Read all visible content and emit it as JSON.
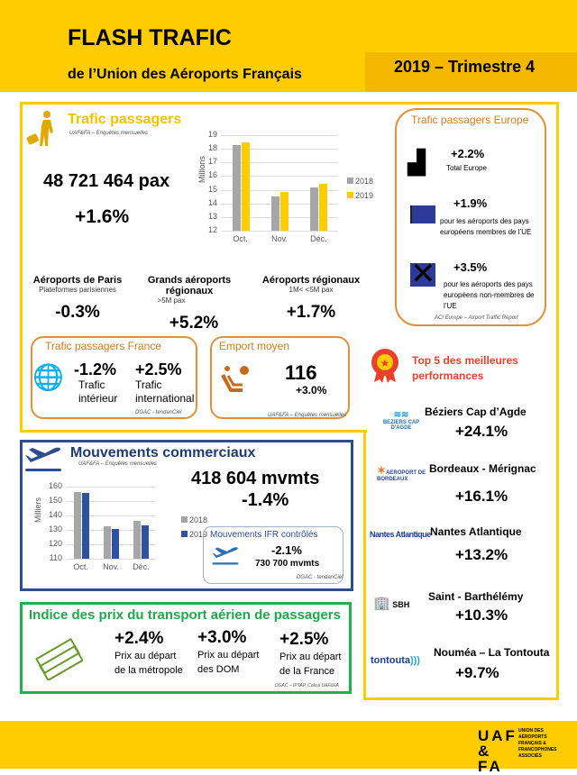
{
  "header": {
    "title": "FLASH TRAFIC",
    "subtitle": "de l’Union des Aéroports Français",
    "period": "2019 – Trimestre 4"
  },
  "passengers": {
    "title": "Trafic passagers",
    "source": "UAF&FA – Enquêtes mensuelles",
    "total": "48 721 464 pax",
    "change": "+1.6%",
    "segments": [
      {
        "name": "Aéroports de Paris",
        "sub": "Plateformes parisiennes",
        "value": "-0.3%"
      },
      {
        "name": "Grands aéroports régionaux",
        "sub": ">5M pax",
        "value": "+5.2%"
      },
      {
        "name": "Aéroports régionaux",
        "sub": "1M< <5M pax",
        "value": "+1.7%"
      }
    ]
  },
  "france": {
    "title": "Trafic passagers France",
    "dom_value": "-1.2%",
    "dom_l1": "Trafic",
    "dom_l2": "intérieur",
    "intl_value": "+2.5%",
    "intl_l1": "Trafic",
    "intl_l2": "international",
    "source": "DGAC - tendanCiel"
  },
  "emport": {
    "title": "Emport moyen",
    "value": "116",
    "change": "+3.0%",
    "source": "UAF&FA – Enquêtes mensuelles"
  },
  "europe": {
    "title": "Trafic passagers Europe",
    "total_value": "+2.2%",
    "total_label": "Total Europe",
    "ue_value": "+1.9%",
    "ue_label": "pour les aéroports des pays européens membres de l’UE",
    "nonue_value": "+3.5%",
    "nonue_label": "pour les aéroports des pays européens non-membres de l’UE",
    "source": "ACI Europe – Airport Traffic Report"
  },
  "movements": {
    "title": "Mouvements commerciaux",
    "source": "UAF&FA – Enquêtes mensuelles",
    "total": "418 604 mvmts",
    "change": "-1.4%",
    "ifr": {
      "title": "Mouvements IFR contrôlés",
      "change": "-2.1%",
      "total": "730 700 mvmts",
      "source": "DGAC - tendanCiel"
    }
  },
  "prices": {
    "title": "Indice des prix du transport aérien de passagers",
    "source": "DGAC – IPTAP, Calcul UAF&FA",
    "items": [
      {
        "value": "+2.4%",
        "l1": "Prix au départ",
        "l2": "de la métropole"
      },
      {
        "value": "+3.0%",
        "l1": "Prix au départ",
        "l2": "des DOM"
      },
      {
        "value": "+2.5%",
        "l1": "Prix au départ",
        "l2": "de la France"
      }
    ]
  },
  "top5": {
    "title1": "Top 5 des meilleures",
    "title2": "performances",
    "items": [
      {
        "name": "Béziers Cap d’Agde",
        "value": "+24.1%",
        "logo": "BEZIERS CAP D'AGDE"
      },
      {
        "name": "Bordeaux - Mérignac",
        "value": "+16.1%",
        "logo": "AEROPORT DE BORDEAUX"
      },
      {
        "name": "Nantes Atlantique",
        "value": "+13.2%",
        "logo": "Nantes Atlantique"
      },
      {
        "name": "Saint - Barthélémy",
        "value": "+10.3%",
        "logo": "SBH"
      },
      {
        "name": "Nouméa – La Tontouta",
        "value": "+9.7%",
        "logo": "tontouta"
      }
    ]
  },
  "footer": {
    "logo": "UAF & FA",
    "logo_text": "UNION DES AÉROPORTS FRANÇAIS & FRANCOPHONES ASSOCIÉS"
  },
  "chart_data": [
    {
      "type": "bar",
      "title": "Trafic passagers",
      "ylabel": "Millions",
      "categories": [
        "Oct.",
        "Nov.",
        "Déc."
      ],
      "ylim": [
        12,
        19
      ],
      "yticks": [
        12,
        13,
        14,
        15,
        16,
        17,
        18,
        19
      ],
      "series": [
        {
          "name": "2018",
          "color": "#a6a6a6",
          "values": [
            18.25,
            14.5,
            15.2
          ]
        },
        {
          "name": "2019",
          "color": "#ffcc00",
          "values": [
            18.45,
            14.85,
            15.45
          ]
        }
      ]
    },
    {
      "type": "bar",
      "title": "Mouvements commerciaux",
      "ylabel": "Milliers",
      "categories": [
        "Oct.",
        "Nov.",
        "Déc."
      ],
      "ylim": [
        110,
        160
      ],
      "yticks": [
        110,
        120,
        130,
        140,
        150,
        160
      ],
      "series": [
        {
          "name": "2018",
          "color": "#a6a6a6",
          "values": [
            156,
            132.5,
            136
          ]
        },
        {
          "name": "2019",
          "color": "#2f52a0",
          "values": [
            155.5,
            130.5,
            133
          ]
        }
      ]
    }
  ]
}
